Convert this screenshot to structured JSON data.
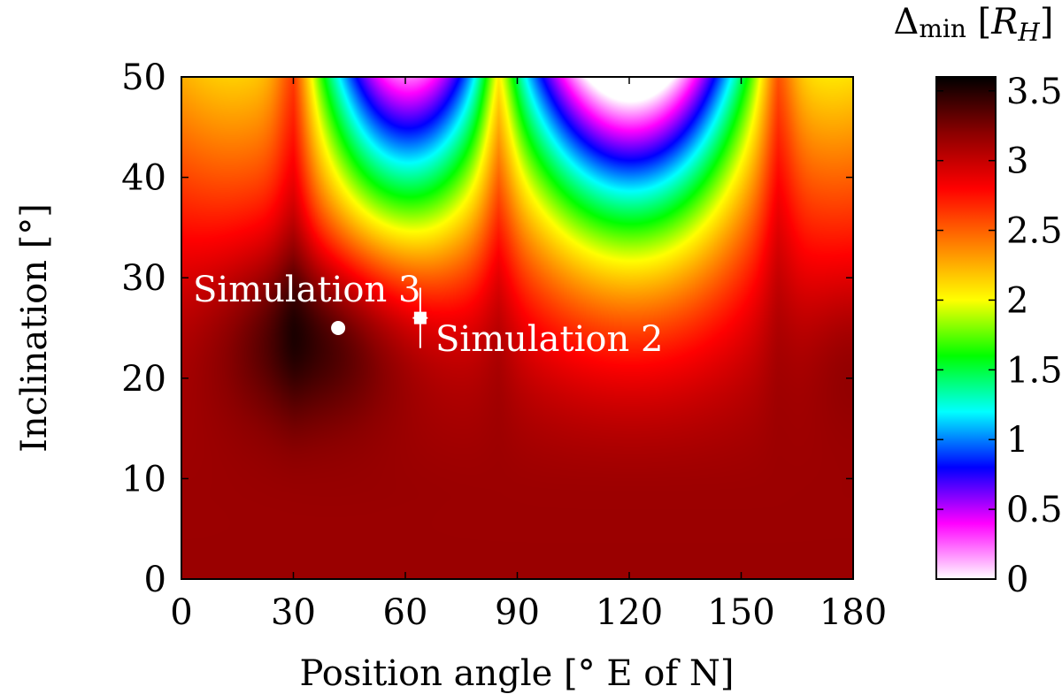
{
  "chart_data": {
    "type": "heatmap",
    "title": "",
    "xlabel": "Position angle [° E of N]",
    "ylabel": "Inclination [°]",
    "xlim": [
      0,
      180
    ],
    "ylim": [
      0,
      50
    ],
    "xticks": [
      0,
      30,
      60,
      90,
      120,
      150,
      180
    ],
    "yticks": [
      0,
      10,
      20,
      30,
      40,
      50
    ],
    "colorbar": {
      "title": {
        "delta": "Δ",
        "sub": "min",
        "bracket_open": " [",
        "r": "R",
        "h": "H",
        "bracket_close": "]"
      },
      "range": [
        0,
        3.6
      ],
      "ticks": [
        "0",
        "0.5",
        "1",
        "1.5",
        "2",
        "2.5",
        "3",
        "3.5"
      ],
      "tick_values": [
        0,
        0.5,
        1,
        1.5,
        2,
        2.5,
        3,
        3.5
      ],
      "palette": [
        "#ffffff",
        "#ff00ff",
        "#0000ff",
        "#00ffff",
        "#00ff00",
        "#ffff00",
        "#ff8000",
        "#ff0000",
        "#8b0000",
        "#000000"
      ]
    },
    "features": {
      "cusps_x": [
        30,
        85,
        160
      ],
      "minima": [
        {
          "x": 57,
          "y": 50,
          "value": 1.1
        },
        {
          "x": 127,
          "y": 50,
          "value": 0.5
        }
      ],
      "dark_region": {
        "x": 40,
        "y": 25,
        "value": 3.6
      }
    },
    "annotations": [
      {
        "label": "Simulation 3",
        "x": 42,
        "y": 25,
        "marker": "circle",
        "x_err": 0,
        "y_err": 0
      },
      {
        "label": "Simulation 2",
        "x": 64,
        "y": 26,
        "marker": "square",
        "x_err": 2,
        "y_err": 3
      }
    ]
  }
}
